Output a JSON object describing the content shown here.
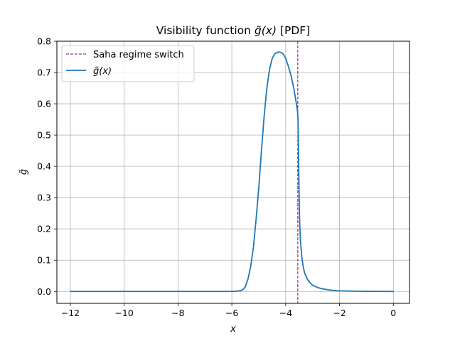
{
  "chart_data": {
    "type": "line",
    "title_prefix": "Visibility function ",
    "title_math": "g̃(x)",
    "title_suffix": " [PDF]",
    "xlabel": "x",
    "ylabel": "g̃",
    "xlim": [
      -12.5,
      0.6
    ],
    "ylim": [
      -0.038,
      0.8
    ],
    "xticks": [
      -12,
      -10,
      -8,
      -6,
      -4,
      -2,
      0
    ],
    "xtick_labels": [
      "−12",
      "−10",
      "−8",
      "−6",
      "−4",
      "−2",
      "0"
    ],
    "yticks": [
      0.0,
      0.1,
      0.2,
      0.3,
      0.4,
      0.5,
      0.6,
      0.7,
      0.8
    ],
    "ytick_labels": [
      "0.0",
      "0.1",
      "0.2",
      "0.3",
      "0.4",
      "0.5",
      "0.6",
      "0.7",
      "0.8"
    ],
    "grid": true,
    "legend_position": "top-left",
    "series": [
      {
        "name": "g̃(x)",
        "color": "#1f77b4",
        "x": [
          -12.0,
          -10.0,
          -8.0,
          -6.5,
          -6.0,
          -5.8,
          -5.6,
          -5.5,
          -5.4,
          -5.3,
          -5.2,
          -5.1,
          -5.0,
          -4.9,
          -4.8,
          -4.7,
          -4.6,
          -4.5,
          -4.4,
          -4.3,
          -4.2,
          -4.15,
          -4.1,
          -4.0,
          -3.9,
          -3.8,
          -3.7,
          -3.6,
          -3.56,
          -3.54,
          -3.52,
          -3.5,
          -3.48,
          -3.45,
          -3.4,
          -3.35,
          -3.3,
          -3.2,
          -3.1,
          -3.0,
          -2.8,
          -2.6,
          -2.4,
          -2.2,
          -2.0,
          -1.5,
          -1.0,
          -0.5,
          0.0
        ],
        "y": [
          0.0,
          0.0,
          0.0,
          0.0,
          0.0,
          0.001,
          0.005,
          0.015,
          0.04,
          0.08,
          0.14,
          0.23,
          0.33,
          0.45,
          0.56,
          0.65,
          0.71,
          0.745,
          0.76,
          0.765,
          0.765,
          0.763,
          0.76,
          0.745,
          0.72,
          0.69,
          0.65,
          0.6,
          0.575,
          0.55,
          0.42,
          0.3,
          0.22,
          0.16,
          0.11,
          0.08,
          0.06,
          0.04,
          0.028,
          0.02,
          0.012,
          0.008,
          0.005,
          0.003,
          0.002,
          0.001,
          0.0005,
          0.0002,
          0.0
        ]
      }
    ],
    "vlines": [
      {
        "name": "Saha regime switch",
        "x": -3.55,
        "color": "#800080",
        "style": "dashed"
      }
    ]
  }
}
